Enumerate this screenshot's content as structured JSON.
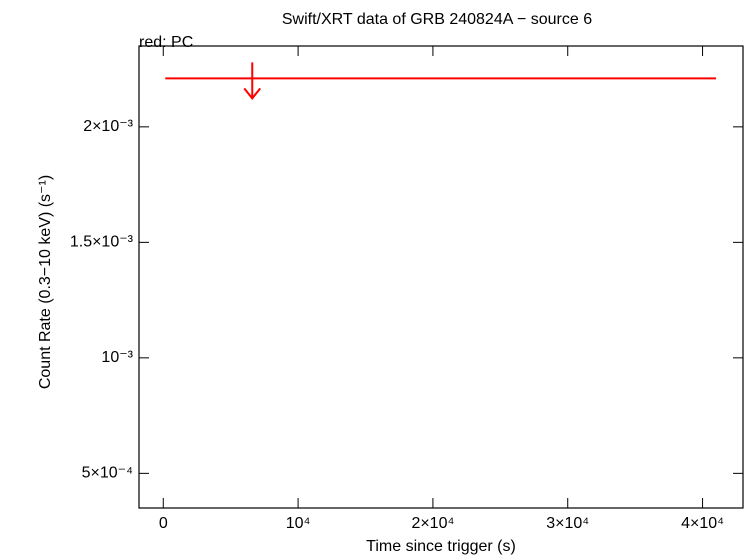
{
  "chart_data": {
    "type": "scatter",
    "title": "Swift/XRT data of GRB 240824A − source 6",
    "annotation": "red: PC",
    "x_label": "Time since trigger (s)",
    "y_label": "Count Rate (0.3−10 keV) (s⁻¹)",
    "xlim": [
      -1800,
      43000
    ],
    "ylim": [
      0.00035,
      0.00235
    ],
    "xticks": [
      0,
      {
        "value": 10000,
        "label": "10⁴"
      },
      {
        "value": 20000,
        "label": "2×10⁴"
      },
      {
        "value": 30000,
        "label": "3×10⁴"
      },
      {
        "value": 40000,
        "label": "4×10⁴"
      }
    ],
    "yticks": [
      {
        "value": 0.0005,
        "label": "5×10⁻⁴"
      },
      {
        "value": 0.001,
        "label": "10⁻³"
      },
      {
        "value": 0.0015,
        "label": "1.5×10⁻³"
      },
      {
        "value": 0.002,
        "label": "2×10⁻³"
      }
    ],
    "series": [
      {
        "color": "#ff0000",
        "x": [
          6600
        ],
        "xerr_minus": [
          6450
        ],
        "xerr_plus": [
          34400
        ],
        "values": [
          0.00221
        ],
        "upper_limit": [
          true
        ]
      }
    ]
  }
}
